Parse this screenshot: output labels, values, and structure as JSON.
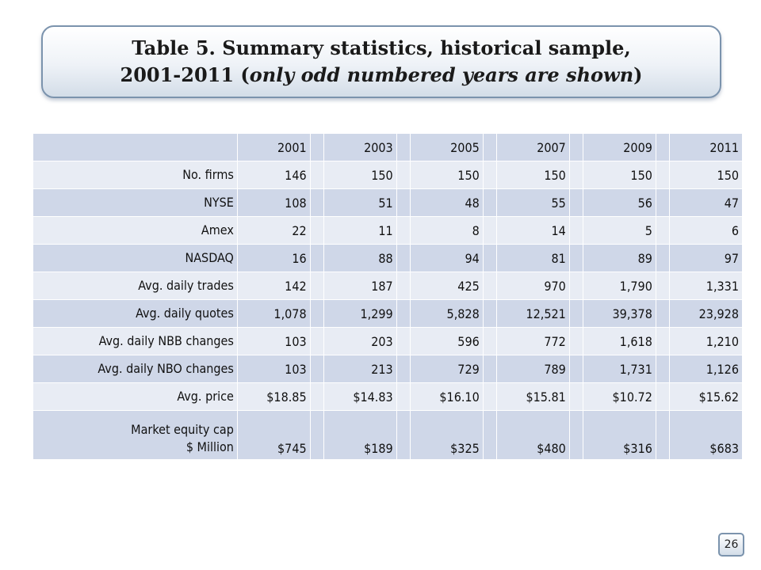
{
  "title": {
    "line1": "Table 5. Summary statistics, historical sample,",
    "line2_plain": "2001-2011 (",
    "line2_italic": "only odd numbered years are shown",
    "line2_close": ")"
  },
  "table": {
    "years": [
      "2001",
      "2003",
      "2005",
      "2007",
      "2009",
      "2011"
    ],
    "rows": [
      {
        "label": "No. firms",
        "values": [
          "146",
          "150",
          "150",
          "150",
          "150",
          "150"
        ]
      },
      {
        "label": "NYSE",
        "values": [
          "108",
          "51",
          "48",
          "55",
          "56",
          "47"
        ]
      },
      {
        "label": "Amex",
        "values": [
          "22",
          "11",
          "8",
          "14",
          "5",
          "6"
        ]
      },
      {
        "label": "NASDAQ",
        "values": [
          "16",
          "88",
          "94",
          "81",
          "89",
          "97"
        ]
      },
      {
        "label": "Avg. daily trades",
        "values": [
          "142",
          "187",
          "425",
          "970",
          "1,790",
          "1,331"
        ]
      },
      {
        "label": "Avg. daily quotes",
        "values": [
          "1,078",
          "1,299",
          "5,828",
          "12,521",
          "39,378",
          "23,928"
        ]
      },
      {
        "label": "Avg. daily NBB changes",
        "values": [
          "103",
          "203",
          "596",
          "772",
          "1,618",
          "1,210"
        ]
      },
      {
        "label": "Avg. daily NBO changes",
        "values": [
          "103",
          "213",
          "729",
          "789",
          "1,731",
          "1,126"
        ]
      },
      {
        "label": "Avg. price",
        "values": [
          "$18.85",
          "$14.83",
          "$16.10",
          "$15.81",
          "$10.72",
          "$15.62"
        ]
      },
      {
        "label_line1": "Market equity cap",
        "label_line2": "$ Million",
        "values": [
          "$745",
          "$189",
          "$325",
          "$480",
          "$316",
          "$683"
        ]
      }
    ]
  },
  "page_number": "26",
  "colors": {
    "band": "#cfd7e8",
    "plain": "#e8ecf4",
    "frame": "#7b93ad"
  }
}
